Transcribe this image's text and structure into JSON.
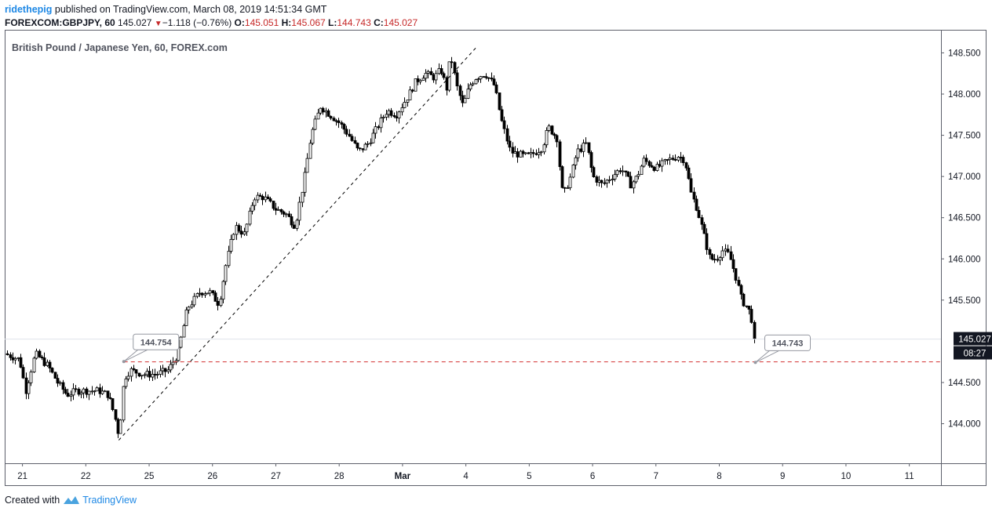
{
  "header": {
    "author": "ridethepig",
    "published_text": "published on TradingView.com, March 08, 2019 14:51:34 GMT",
    "symbol": "FOREXCOM:GBPJPY, 60",
    "last_price": "145.027",
    "change": "−1.118 (−0.76%)",
    "open_label": "O:",
    "open": "145.051",
    "high_label": "H:",
    "high": "145.067",
    "low_label": "L:",
    "low": "144.743",
    "close_label": "C:",
    "close": "145.027"
  },
  "footer": {
    "created_with": "Created with",
    "brand": "TradingView"
  },
  "colors": {
    "candle": "#000000",
    "grid": "#e8e8e8",
    "dashed_level": "#d32f2f",
    "badge_bg": "#131722",
    "callout_text": "#50535e"
  },
  "chart_data": {
    "type": "candlestick",
    "title": "British Pound / Japanese Yen, 60, FOREX.com",
    "y_ticks": [
      "148.500",
      "148.000",
      "147.500",
      "147.000",
      "146.500",
      "146.000",
      "145.500",
      "144.500",
      "144.000"
    ],
    "ylim": [
      143.52,
      148.78
    ],
    "x_ticks": [
      "21",
      "22",
      "25",
      "26",
      "27",
      "28",
      "Mar",
      "4",
      "5",
      "6",
      "7",
      "8",
      "9",
      "10",
      "11"
    ],
    "x_tick_values": [
      0,
      1,
      2,
      3,
      4,
      5,
      6,
      7,
      8,
      9,
      10,
      11,
      12,
      13,
      14
    ],
    "xlim": [
      -0.28,
      14.5
    ],
    "grid": false,
    "last_price_badge": "145.027",
    "countdown_badge": "08:27",
    "last_price": 145.027,
    "horizontal_level": 144.75,
    "callouts": [
      {
        "text": "144.754",
        "x": 1.6,
        "y": 144.754
      },
      {
        "text": "144.743",
        "x": 11.57,
        "y": 144.743
      }
    ],
    "trendline": {
      "x1": 1.52,
      "y1": 143.8,
      "x2": 7.18,
      "y2": 148.58
    },
    "price_path": [
      [
        -0.28,
        144.85
      ],
      [
        -0.05,
        144.78
      ],
      [
        0.05,
        144.4
      ],
      [
        0.2,
        144.85
      ],
      [
        0.4,
        144.7
      ],
      [
        0.55,
        144.5
      ],
      [
        0.7,
        144.35
      ],
      [
        0.85,
        144.4
      ],
      [
        1.0,
        144.4
      ],
      [
        1.2,
        144.4
      ],
      [
        1.35,
        144.35
      ],
      [
        1.45,
        144.1
      ],
      [
        1.52,
        143.85
      ],
      [
        1.6,
        144.55
      ],
      [
        1.7,
        144.65
      ],
      [
        1.9,
        144.6
      ],
      [
        2.1,
        144.6
      ],
      [
        2.3,
        144.65
      ],
      [
        2.45,
        144.85
      ],
      [
        2.6,
        145.4
      ],
      [
        2.8,
        145.6
      ],
      [
        2.95,
        145.6
      ],
      [
        3.1,
        145.45
      ],
      [
        3.2,
        145.9
      ],
      [
        3.35,
        146.4
      ],
      [
        3.5,
        146.3
      ],
      [
        3.65,
        146.75
      ],
      [
        3.8,
        146.75
      ],
      [
        4.0,
        146.6
      ],
      [
        4.15,
        146.55
      ],
      [
        4.3,
        146.4
      ],
      [
        4.45,
        147.0
      ],
      [
        4.55,
        147.5
      ],
      [
        4.7,
        147.85
      ],
      [
        4.85,
        147.75
      ],
      [
        5.0,
        147.65
      ],
      [
        5.15,
        147.5
      ],
      [
        5.3,
        147.3
      ],
      [
        5.45,
        147.4
      ],
      [
        5.6,
        147.6
      ],
      [
        5.75,
        147.8
      ],
      [
        5.9,
        147.75
      ],
      [
        6.1,
        148.0
      ],
      [
        6.2,
        148.15
      ],
      [
        6.35,
        148.25
      ],
      [
        6.5,
        148.2
      ],
      [
        6.6,
        148.3
      ],
      [
        6.7,
        148.05
      ],
      [
        6.75,
        148.5
      ],
      [
        6.85,
        148.1
      ],
      [
        6.95,
        147.85
      ],
      [
        7.05,
        148.1
      ],
      [
        7.15,
        148.2
      ],
      [
        7.3,
        148.25
      ],
      [
        7.45,
        148.1
      ],
      [
        7.55,
        147.7
      ],
      [
        7.7,
        147.3
      ],
      [
        7.9,
        147.25
      ],
      [
        8.0,
        147.25
      ],
      [
        8.2,
        147.35
      ],
      [
        8.3,
        147.6
      ],
      [
        8.45,
        147.45
      ],
      [
        8.5,
        146.85
      ],
      [
        8.55,
        146.8
      ],
      [
        8.65,
        147.0
      ],
      [
        8.75,
        147.3
      ],
      [
        8.9,
        147.4
      ],
      [
        9.0,
        147.0
      ],
      [
        9.15,
        146.9
      ],
      [
        9.3,
        147.0
      ],
      [
        9.45,
        147.1
      ],
      [
        9.6,
        146.9
      ],
      [
        9.7,
        147.0
      ],
      [
        9.8,
        147.2
      ],
      [
        10.0,
        147.1
      ],
      [
        10.2,
        147.2
      ],
      [
        10.35,
        147.25
      ],
      [
        10.45,
        147.2
      ],
      [
        10.55,
        146.8
      ],
      [
        10.65,
        146.6
      ],
      [
        10.75,
        146.3
      ],
      [
        10.85,
        146.0
      ],
      [
        10.95,
        146.0
      ],
      [
        11.05,
        146.1
      ],
      [
        11.15,
        146.05
      ],
      [
        11.25,
        145.8
      ],
      [
        11.35,
        145.5
      ],
      [
        11.45,
        145.4
      ],
      [
        11.5,
        145.3
      ],
      [
        11.55,
        145.05
      ],
      [
        11.57,
        145.027
      ]
    ]
  }
}
